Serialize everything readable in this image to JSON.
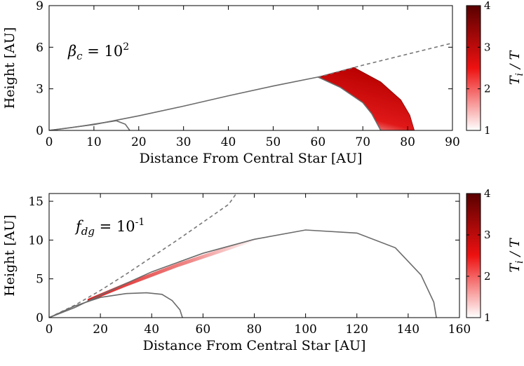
{
  "chart_data": [
    {
      "type": "line",
      "panel": "top",
      "xlabel": "Distance From Central Star [AU]",
      "ylabel": "Height [AU]",
      "xlim": [
        0,
        90
      ],
      "ylim": [
        0,
        9
      ],
      "xticks": [
        "0",
        "10",
        "20",
        "30",
        "40",
        "50",
        "60",
        "70",
        "80",
        "90"
      ],
      "yticks": [
        "0",
        "3",
        "6",
        "9"
      ],
      "annotation": {
        "main": "β",
        "sub": "c",
        "eq": " = 10",
        "sup": "2"
      },
      "colorbar": {
        "label_main": "T",
        "label_sub": "i",
        "label_rest": " / T",
        "min": 1,
        "max": 4,
        "ticks": [
          "1",
          "2",
          "3",
          "4"
        ],
        "color_low": "#ffffff",
        "color_mid": "#ee1111",
        "color_high": "#5a0000"
      },
      "series": [
        {
          "name": "surface",
          "style": "solid",
          "x": [
            0,
            10,
            20,
            30,
            40,
            50,
            60
          ],
          "y": [
            0,
            0.42,
            1.05,
            1.75,
            2.5,
            3.2,
            3.85
          ]
        },
        {
          "name": "extrapolation",
          "style": "dashed",
          "x": [
            60,
            70,
            80,
            90
          ],
          "y": [
            3.85,
            4.7,
            5.5,
            6.3
          ]
        },
        {
          "name": "inner contour",
          "style": "solid",
          "x": [
            0,
            5,
            10,
            15,
            17,
            18
          ],
          "y": [
            0,
            0.2,
            0.45,
            0.7,
            0.45,
            0
          ]
        },
        {
          "name": "outer contour",
          "style": "solid",
          "x": [
            60,
            65,
            70,
            72,
            74
          ],
          "y": [
            3.85,
            3.1,
            2.0,
            1.2,
            0
          ]
        }
      ],
      "shaded_region": {
        "name": "T_i / T heating",
        "inner_edge": [
          [
            60,
            3.85
          ],
          [
            65,
            3.1
          ],
          [
            70,
            2.0
          ],
          [
            72,
            1.2
          ],
          [
            74,
            0
          ]
        ],
        "outer_edge": [
          [
            68,
            4.55
          ],
          [
            74,
            3.5
          ],
          [
            78.5,
            2.2
          ],
          [
            80.5,
            1.1
          ],
          [
            81.5,
            0
          ]
        ],
        "t_min": 1,
        "t_max": 2.8
      }
    },
    {
      "type": "line",
      "panel": "bottom",
      "xlabel": "Distance From Central Star [AU]",
      "ylabel": "Height [AU]",
      "xlim": [
        0,
        160
      ],
      "ylim": [
        0,
        16
      ],
      "xticks": [
        "0",
        "20",
        "40",
        "60",
        "80",
        "100",
        "120",
        "140",
        "160"
      ],
      "yticks": [
        "0",
        "5",
        "10",
        "15"
      ],
      "annotation": {
        "main": "f",
        "sub": "dg",
        "eq": " = 10",
        "sup": "-1"
      },
      "colorbar": {
        "label_main": "T",
        "label_sub": "i",
        "label_rest": " / T",
        "min": 1,
        "max": 4,
        "ticks": [
          "1",
          "2",
          "3",
          "4"
        ],
        "color_low": "#ffffff",
        "color_mid": "#ee1111",
        "color_high": "#5a0000"
      },
      "series": [
        {
          "name": "dashed surface",
          "style": "dashed",
          "x": [
            0,
            10,
            20,
            30,
            40,
            50,
            60,
            70,
            73
          ],
          "y": [
            0,
            1.6,
            3.5,
            5.6,
            7.8,
            10.0,
            12.3,
            14.6,
            16
          ]
        },
        {
          "name": "outer contour",
          "style": "solid",
          "x": [
            0,
            10,
            20,
            40,
            60,
            80,
            100,
            120,
            135,
            145,
            150,
            151
          ],
          "y": [
            0,
            1.3,
            2.9,
            5.9,
            8.3,
            10.1,
            11.3,
            10.9,
            9.0,
            5.5,
            2.0,
            0
          ]
        },
        {
          "name": "inner contour",
          "style": "solid",
          "x": [
            0,
            10,
            20,
            30,
            38,
            44,
            48,
            51,
            52
          ],
          "y": [
            0,
            1.5,
            2.6,
            3.1,
            3.2,
            3.0,
            2.2,
            1.0,
            0
          ]
        }
      ],
      "shaded_region": {
        "name": "T_i / T heating band",
        "upper_edge": [
          [
            15,
            2.4
          ],
          [
            30,
            4.5
          ],
          [
            50,
            7.0
          ],
          [
            70,
            9.2
          ],
          [
            82,
            10.4
          ]
        ],
        "lower_edge": [
          [
            15,
            2.0
          ],
          [
            30,
            4.0
          ],
          [
            50,
            6.5
          ],
          [
            70,
            8.7
          ],
          [
            82,
            10.1
          ]
        ],
        "t_min": 1,
        "t_max": 2.3
      }
    }
  ]
}
